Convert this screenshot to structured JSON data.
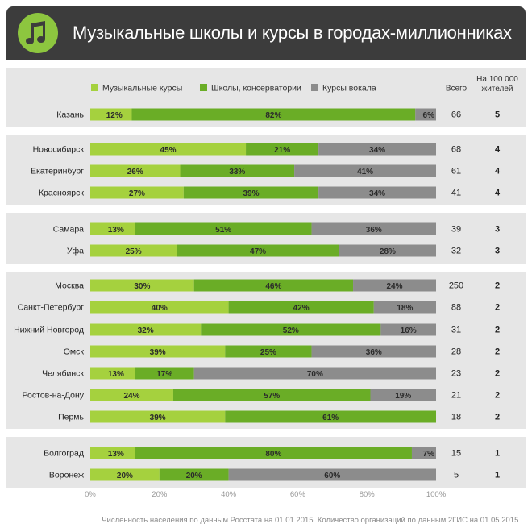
{
  "title": "Музыкальные школы и курсы в городах-миллионниках",
  "footnote": "Численность населения по данным Росстата на 01.01.2015. Количество организаций по данным 2ГИС на 01.05.2015.",
  "colors": {
    "header_bg": "#3c3c3c",
    "panel_bg": "#e6e6e6",
    "courses": "#a5d13e",
    "schools": "#6aad26",
    "vocal": "#8c8c8c",
    "logo": "#8dc63f"
  },
  "chart_data": {
    "type": "bar",
    "stacked": true,
    "orientation": "horizontal",
    "title": "Музыкальные школы и курсы в городах-миллионниках",
    "legend": [
      "Музыкальные курсы",
      "Школы, консерватории",
      "Курсы вокала"
    ],
    "col_total_label": "Всего",
    "col_per_label": [
      "На 100 000",
      "жителей"
    ],
    "xlim": [
      0,
      100
    ],
    "x_ticks": [
      "0%",
      "20%",
      "40%",
      "60%",
      "80%",
      "100%"
    ],
    "groups": [
      {
        "rows": [
          {
            "city": "Казань",
            "values": [
              12,
              82,
              6
            ],
            "total": 66,
            "per100k": 5
          }
        ]
      },
      {
        "rows": [
          {
            "city": "Новосибирск",
            "values": [
              45,
              21,
              34
            ],
            "total": 68,
            "per100k": 4
          },
          {
            "city": "Екатеринбург",
            "values": [
              26,
              33,
              41
            ],
            "total": 61,
            "per100k": 4
          },
          {
            "city": "Красноярск",
            "values": [
              27,
              39,
              34
            ],
            "total": 41,
            "per100k": 4
          }
        ]
      },
      {
        "rows": [
          {
            "city": "Самара",
            "values": [
              13,
              51,
              36
            ],
            "total": 39,
            "per100k": 3
          },
          {
            "city": "Уфа",
            "values": [
              25,
              47,
              28
            ],
            "total": 32,
            "per100k": 3
          }
        ]
      },
      {
        "rows": [
          {
            "city": "Москва",
            "values": [
              30,
              46,
              24
            ],
            "total": 250,
            "per100k": 2
          },
          {
            "city": "Санкт-Петербург",
            "values": [
              40,
              42,
              18
            ],
            "total": 88,
            "per100k": 2
          },
          {
            "city": "Нижний Новгород",
            "values": [
              32,
              52,
              16
            ],
            "total": 31,
            "per100k": 2
          },
          {
            "city": "Омск",
            "values": [
              39,
              25,
              36
            ],
            "total": 28,
            "per100k": 2
          },
          {
            "city": "Челябинск",
            "values": [
              13,
              17,
              70
            ],
            "total": 23,
            "per100k": 2
          },
          {
            "city": "Ростов-на-Дону",
            "values": [
              24,
              57,
              19
            ],
            "total": 21,
            "per100k": 2
          },
          {
            "city": "Пермь",
            "values": [
              39,
              61,
              0
            ],
            "total": 18,
            "per100k": 2
          }
        ]
      },
      {
        "rows": [
          {
            "city": "Волгоград",
            "values": [
              13,
              80,
              7
            ],
            "total": 15,
            "per100k": 1
          },
          {
            "city": "Воронеж",
            "values": [
              20,
              20,
              60
            ],
            "total": 5,
            "per100k": 1
          }
        ]
      }
    ]
  }
}
